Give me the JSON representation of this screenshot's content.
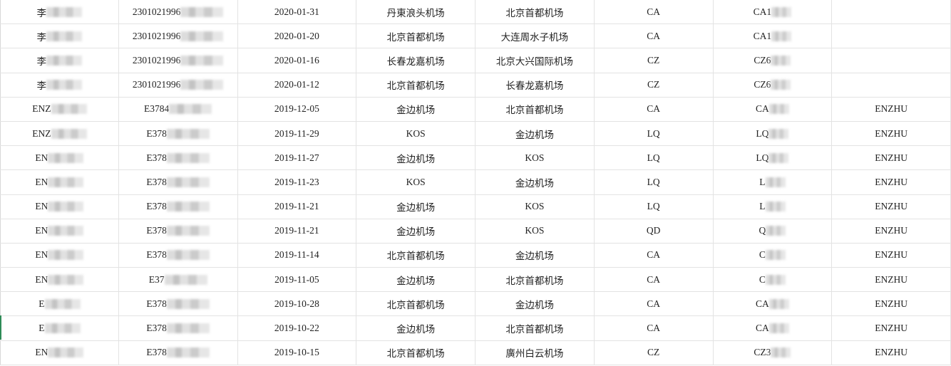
{
  "rows": [
    {
      "cells": [
        "李",
        "2301021996",
        "2020-01-31",
        "丹東浪头机场",
        "北京首都机场",
        "CA",
        "CA1",
        ""
      ]
    },
    {
      "cells": [
        "李",
        "2301021996",
        "2020-01-20",
        "北京首都机场",
        "大连周水子机场",
        "CA",
        "CA1",
        ""
      ]
    },
    {
      "cells": [
        "李",
        "2301021996",
        "2020-01-16",
        "长春龙嘉机场",
        "北京大兴国际机场",
        "CZ",
        "CZ6",
        ""
      ]
    },
    {
      "cells": [
        "李",
        "2301021996",
        "2020-01-12",
        "北京首都机场",
        "长春龙嘉机场",
        "CZ",
        "CZ6",
        ""
      ]
    },
    {
      "cells": [
        "ENZ",
        "E3784",
        "2019-12-05",
        "金边机场",
        "北京首都机场",
        "CA",
        "CA",
        "ENZHU"
      ]
    },
    {
      "cells": [
        "ENZ",
        "E378",
        "2019-11-29",
        "KOS",
        "金边机场",
        "LQ",
        "LQ",
        "ENZHU"
      ]
    },
    {
      "cells": [
        "EN",
        "E378",
        "2019-11-27",
        "金边机场",
        "KOS",
        "LQ",
        "LQ",
        "ENZHU"
      ]
    },
    {
      "cells": [
        "EN",
        "E378",
        "2019-11-23",
        "KOS",
        "金边机场",
        "LQ",
        "L",
        "ENZHU"
      ]
    },
    {
      "cells": [
        "EN",
        "E378",
        "2019-11-21",
        "金边机场",
        "KOS",
        "LQ",
        "L",
        "ENZHU"
      ]
    },
    {
      "cells": [
        "EN",
        "E378",
        "2019-11-21",
        "金边机场",
        "KOS",
        "QD",
        "Q",
        "ENZHU"
      ]
    },
    {
      "cells": [
        "EN",
        "E378",
        "2019-11-14",
        "北京首都机场",
        "金边机场",
        "CA",
        "C",
        "ENZHU"
      ]
    },
    {
      "cells": [
        "EN",
        "E37",
        "2019-11-05",
        "金边机场",
        "北京首都机场",
        "CA",
        "C",
        "ENZHU"
      ]
    },
    {
      "cells": [
        "E",
        "E378",
        "2019-10-28",
        "北京首都机场",
        "金边机场",
        "CA",
        "CA",
        "ENZHU"
      ]
    },
    {
      "cells": [
        "E",
        "E378",
        "2019-10-22",
        "金边机场",
        "北京首都机场",
        "CA",
        "CA",
        "ENZHU"
      ]
    },
    {
      "cells": [
        "EN",
        "E378",
        "2019-10-15",
        "北京首都机场",
        "廣州白云机场",
        "CZ",
        "CZ3",
        "ENZHU"
      ]
    }
  ],
  "redacted_columns": [
    0,
    1,
    6
  ]
}
